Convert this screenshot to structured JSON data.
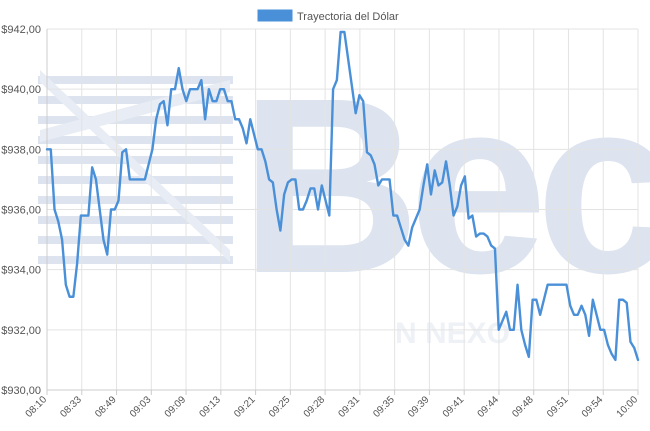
{
  "colors": {
    "series": "#4a90d9",
    "watermark": "#d9e1ee",
    "grid": "#e3e3e3"
  },
  "chart_data": {
    "type": "line",
    "title": "",
    "xlabel": "",
    "ylabel": "",
    "ylim": [
      930,
      942
    ],
    "y_ticks": [
      "$930,00",
      "$932,00",
      "$934,00",
      "$936,00",
      "$938,00",
      "$940,00",
      "$942,00"
    ],
    "y_tick_values": [
      930,
      932,
      934,
      936,
      938,
      940,
      942
    ],
    "x_tick_labels": [
      "08:10",
      "08:33",
      "08:49",
      "09:03",
      "09:09",
      "09:13",
      "09:21",
      "09:25",
      "09:28",
      "09:31",
      "09:35",
      "09:39",
      "09:41",
      "09:44",
      "09:48",
      "09:51",
      "09:54",
      "10:00"
    ],
    "grid": true,
    "legend": "top-center",
    "series": [
      {
        "name": "Trayectoria del Dólar",
        "values": [
          938.0,
          938.0,
          936.0,
          935.6,
          935.0,
          933.5,
          933.1,
          933.1,
          934.2,
          935.8,
          935.8,
          935.8,
          937.4,
          937.0,
          936.0,
          935.0,
          934.5,
          936.0,
          936.0,
          936.3,
          937.9,
          938.0,
          937.0,
          937.0,
          937.0,
          937.0,
          937.0,
          937.5,
          938.0,
          939.0,
          939.5,
          939.6,
          938.8,
          940.0,
          940.0,
          940.7,
          940.0,
          939.6,
          940.0,
          940.0,
          940.0,
          940.3,
          939.0,
          940.0,
          939.6,
          939.6,
          940.0,
          940.0,
          939.6,
          939.6,
          939.0,
          939.0,
          938.7,
          938.2,
          939.0,
          938.5,
          938.0,
          938.0,
          937.6,
          937.0,
          936.9,
          936.0,
          935.3,
          936.5,
          936.9,
          937.0,
          937.0,
          936.0,
          936.0,
          936.3,
          936.7,
          936.7,
          936.0,
          936.8,
          936.3,
          935.8,
          940.0,
          940.3,
          941.9,
          941.9,
          941.0,
          940.1,
          939.2,
          939.8,
          939.6,
          937.9,
          937.8,
          937.5,
          936.8,
          937.0,
          937.0,
          937.0,
          935.8,
          935.8,
          935.4,
          935.0,
          934.8,
          935.4,
          935.7,
          936.0,
          936.8,
          937.5,
          936.5,
          937.3,
          936.8,
          936.9,
          937.6,
          936.8,
          935.8,
          936.1,
          936.8,
          937.1,
          935.7,
          935.8,
          935.1,
          935.2,
          935.2,
          935.1,
          934.8,
          934.7,
          932.0,
          932.3,
          932.6,
          932.0,
          932.0,
          933.5,
          932.0,
          931.5,
          931.1,
          933.0,
          933.0,
          932.5,
          933.0,
          933.5,
          933.5,
          933.5,
          933.5,
          933.5,
          933.5,
          932.8,
          932.5,
          932.5,
          932.8,
          932.5,
          931.8,
          933.0,
          932.5,
          932.0,
          932.0,
          931.5,
          931.2,
          931.0,
          933.0,
          933.0,
          932.9,
          931.6,
          931.4,
          931.0
        ]
      }
    ]
  },
  "watermark": {
    "brand": "Bec",
    "sub": "N NEXO"
  }
}
